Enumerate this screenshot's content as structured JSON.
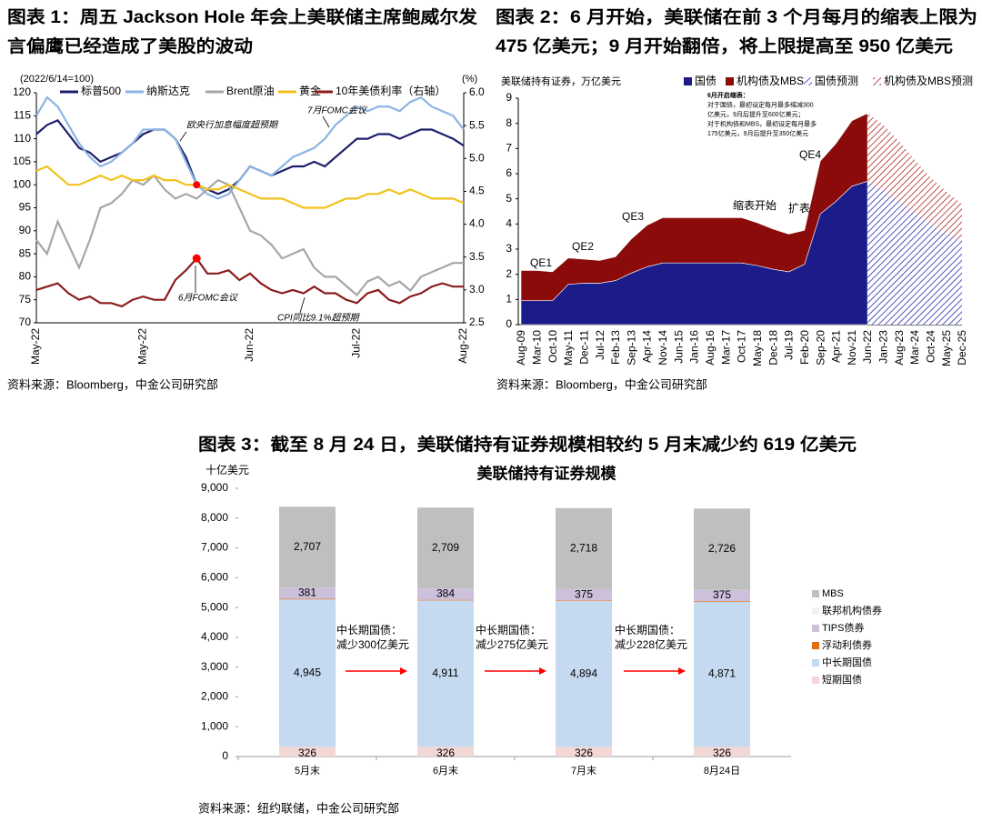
{
  "chart_data": [
    {
      "type": "line",
      "figure_title": [
        "图表 1：周五 Jackson Hole 年会上美联储主席鲍威尔发",
        "言偏鹰已经造成了美股的波动"
      ],
      "ylabel": "(2022/6/14=100)",
      "y2label": "(%)",
      "categories": [
        "May-22",
        null,
        null,
        null,
        null,
        null,
        null,
        null,
        null,
        null,
        "May-22",
        null,
        null,
        null,
        null,
        null,
        null,
        null,
        null,
        null,
        "Jun-22",
        null,
        null,
        null,
        null,
        null,
        null,
        null,
        null,
        null,
        "Jul-22",
        null,
        null,
        null,
        null,
        null,
        null,
        null,
        null,
        null,
        "Aug-22"
      ],
      "series": [
        {
          "name": "标普500",
          "color": "#1c1f6b",
          "values": [
            111,
            113,
            114,
            111,
            108,
            107,
            105,
            106,
            107,
            109,
            111,
            112,
            112,
            110,
            106,
            100,
            99,
            98,
            99,
            101,
            104,
            103,
            102,
            103,
            104,
            104,
            105,
            104,
            106,
            108,
            110,
            110,
            111,
            111,
            110,
            111,
            112,
            112,
            111,
            110,
            108.5
          ]
        },
        {
          "name": "纳斯达克",
          "color": "#8eb4e3",
          "values": [
            115,
            119,
            117,
            113,
            109,
            106,
            104,
            105,
            107,
            109,
            112,
            112,
            112,
            110,
            105,
            100,
            98,
            97,
            98,
            101,
            104,
            103,
            102,
            104,
            106,
            107,
            108,
            110,
            113,
            115,
            117,
            116,
            117,
            117,
            116,
            118,
            119,
            117,
            116,
            115,
            112
          ]
        },
        {
          "name": "Brent原油",
          "color": "#a6a6a6",
          "values": [
            88,
            85,
            92,
            87,
            82,
            88,
            95,
            96,
            98,
            101,
            100,
            102,
            99,
            97,
            98,
            97,
            99,
            101,
            100,
            95,
            90,
            89,
            87,
            84,
            85,
            86,
            82,
            80,
            80,
            78,
            76,
            79,
            80,
            78,
            79,
            77,
            80,
            81,
            82,
            83,
            83
          ]
        },
        {
          "name": "黄金",
          "color": "#f2c21b",
          "values": [
            103,
            104,
            102,
            100,
            100,
            101,
            102,
            101,
            102,
            101,
            101,
            102,
            101,
            101,
            100,
            100,
            99,
            99,
            100,
            99,
            98,
            97,
            97,
            97,
            96,
            95,
            95,
            95,
            96,
            97,
            97,
            98,
            98,
            99,
            98,
            99,
            98,
            97,
            97,
            97,
            96
          ]
        },
        {
          "name": "10年美债利率（右轴）",
          "color": "#8b1c1c",
          "axis": "y2",
          "values": [
            3.0,
            3.05,
            3.1,
            2.95,
            2.85,
            2.9,
            2.8,
            2.8,
            2.75,
            2.85,
            2.9,
            2.85,
            2.85,
            3.15,
            3.3,
            3.48,
            3.25,
            3.25,
            3.3,
            3.15,
            3.25,
            3.1,
            3.0,
            2.95,
            3.0,
            2.95,
            3.05,
            2.95,
            2.95,
            2.85,
            2.8,
            2.95,
            3.0,
            2.85,
            2.8,
            2.9,
            2.95,
            3.05,
            3.1,
            3.05,
            3.05
          ]
        }
      ],
      "ylim": [
        70,
        120
      ],
      "yticks": [
        70,
        75,
        80,
        85,
        90,
        95,
        100,
        105,
        110,
        115,
        120
      ],
      "y2lim": [
        2.5,
        6.0
      ],
      "y2ticks": [
        2.5,
        {
          "value": 3,
          "label": "3.0"
        },
        3.5,
        {
          "value": 4,
          "label": "4.0"
        },
        4.5,
        {
          "value": 5,
          "label": "5.0"
        },
        5.5,
        {
          "value": 6,
          "label": "6.0"
        }
      ],
      "annotations": [
        "欧央行加息幅度超预期",
        "7月FOMC会议",
        "6月FOMC会议",
        "CPI同比9.1%超预期"
      ],
      "source": "资料来源：Bloomberg，中金公司研究部"
    },
    {
      "type": "area",
      "figure_title": [
        "图表 2：6 月开始，美联储在前 3 个月每月的缩表上限为",
        "475 亿美元；9 月开始翻倍，将上限提高至 950 亿美元"
      ],
      "ylabel": "美联储持有证券，万亿美元",
      "categories": [
        "Aug-09",
        "Mar-10",
        "Oct-10",
        "May-11",
        "Dec-11",
        "Jul-12",
        "Feb-13",
        "Sep-13",
        "Apr-14",
        "Nov-14",
        "Jun-15",
        "Jan-16",
        "Aug-16",
        "Mar-17",
        "Oct-17",
        "May-18",
        "Dec-18",
        "Jul-19",
        "Feb-20",
        "Sep-20",
        "Apr-21",
        "Nov-21",
        "Jun-22",
        "Jan-23",
        "Aug-23",
        "Mar-24",
        "Oct-24",
        "May-25",
        "Dec-25"
      ],
      "series": [
        {
          "name": "国债",
          "color": "#1b1b8a",
          "values": [
            0.95,
            0.95,
            0.95,
            1.6,
            1.65,
            1.65,
            1.75,
            2.05,
            2.3,
            2.45,
            2.45,
            2.45,
            2.45,
            2.45,
            2.45,
            2.35,
            2.2,
            2.1,
            2.4,
            4.4,
            4.9,
            5.5,
            5.7,
            null,
            null,
            null,
            null,
            null,
            null
          ]
        },
        {
          "name": "机构债及MBS",
          "color": "#8b0a0a",
          "values": [
            1.2,
            1.2,
            1.15,
            1.05,
            0.95,
            0.9,
            0.95,
            1.35,
            1.65,
            1.8,
            1.8,
            1.8,
            1.8,
            1.8,
            1.8,
            1.7,
            1.6,
            1.5,
            1.35,
            2.1,
            2.3,
            2.6,
            2.7,
            null,
            null,
            null,
            null,
            null,
            null
          ]
        },
        {
          "name": "国债预测",
          "color": "#5555c0",
          "pattern": "hatch",
          "values": [
            null,
            null,
            null,
            null,
            null,
            null,
            null,
            null,
            null,
            null,
            null,
            null,
            null,
            null,
            null,
            null,
            null,
            null,
            null,
            null,
            null,
            null,
            5.7,
            5.35,
            4.9,
            4.45,
            4.0,
            3.65,
            3.35
          ]
        },
        {
          "name": "机构债及MBS预测",
          "color": "#c05050",
          "pattern": "hatch",
          "values": [
            null,
            null,
            null,
            null,
            null,
            null,
            null,
            null,
            null,
            null,
            null,
            null,
            null,
            null,
            null,
            null,
            null,
            null,
            null,
            null,
            null,
            null,
            2.7,
            2.6,
            2.4,
            2.1,
            1.85,
            1.65,
            1.45
          ]
        }
      ],
      "ylim": [
        0,
        9
      ],
      "yticks": [
        0,
        1,
        2,
        3,
        4,
        5,
        6,
        7,
        8,
        9
      ],
      "annotations": [
        "QE1",
        "QE2",
        "QE3",
        "缩表开始",
        "扩表",
        "QE4"
      ],
      "note": [
        "6月开启缩表：",
        "对于国债，最初设定每月最多缩减300",
        "亿美元，9月后提升至600亿美元；",
        "对于机构债和MBS，最初设定每月最多",
        "175亿美元，9月后提升至350亿美元"
      ],
      "source": "资料来源：Bloomberg，中金公司研究部"
    },
    {
      "type": "stacked-bar",
      "figure_title": "图表 3：截至 8 月 24 日，美联储持有证券规模相较约 5 月末减少约 619 亿美元",
      "title": "美联储持有证券规模",
      "ylabel": "十亿美元",
      "categories": [
        "5月末",
        "6月末",
        "7月末",
        "8月24日"
      ],
      "series": [
        {
          "name": "短期国债",
          "color": "#f2d7d5",
          "values": [
            326,
            326,
            326,
            326
          ],
          "value_labels": [
            "326",
            "326",
            "326",
            "326"
          ]
        },
        {
          "name": "中长期国债",
          "color": "#c5d9f1",
          "values": [
            4945,
            4911,
            4894,
            4871
          ],
          "value_labels": [
            "4,945",
            "4,911",
            "4,894",
            "4,871"
          ]
        },
        {
          "name": "浮动利债券",
          "color": "#e46c0a",
          "values": [
            20,
            20,
            20,
            20
          ]
        },
        {
          "name": "TIPS债券",
          "color": "#ccc0da",
          "values": [
            381,
            384,
            375,
            375
          ],
          "value_labels": [
            "381",
            "384",
            "375",
            "375"
          ]
        },
        {
          "name": "联邦机构债券",
          "color": "#f2f2f2",
          "values": [
            2,
            2,
            2,
            2
          ]
        },
        {
          "name": "MBS",
          "color": "#bfbfbf",
          "values": [
            2707,
            2709,
            2718,
            2726
          ],
          "value_labels": [
            "2,707",
            "2,709",
            "2,718",
            "2,726"
          ]
        }
      ],
      "ylim": [
        0,
        9000
      ],
      "yticks": [
        0,
        {
          "value": 1000,
          "label": "1,000"
        },
        {
          "value": 2000,
          "label": "2,000"
        },
        {
          "value": 3000,
          "label": "3,000"
        },
        {
          "value": 4000,
          "label": "4,000"
        },
        {
          "value": 5000,
          "label": "5,000"
        },
        {
          "value": 6000,
          "label": "6,000"
        },
        {
          "value": 7000,
          "label": "7,000"
        },
        {
          "value": 8000,
          "label": "8,000"
        },
        {
          "value": 9000,
          "label": "9,000"
        }
      ],
      "annotations": [
        [
          "中长期国债：",
          "减少300亿美元"
        ],
        [
          "中长期国债：",
          "减少275亿美元"
        ],
        [
          "中长期国债：",
          "减少228亿美元"
        ]
      ],
      "source": "资料来源：纽约联储，中金公司研究部"
    }
  ]
}
